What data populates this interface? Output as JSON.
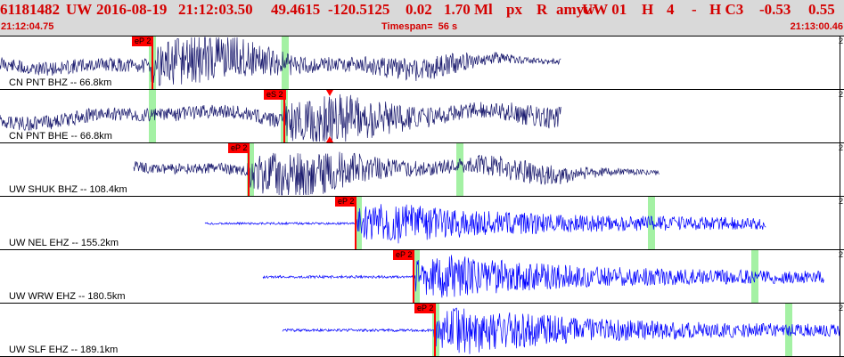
{
  "header": {
    "event_id": "61181482",
    "network": "UW",
    "date": "2016-08-19",
    "time": "21:12:03.50",
    "lat": "49.4615",
    "lon": "-120.5125",
    "depth": "0.02",
    "magnitude": "1.70 Ml",
    "type": "px",
    "review": "R",
    "author": "amyw",
    "net_code": "UW 01",
    "h_label": "H",
    "count": "4",
    "dash": "-",
    "quality": "H C3",
    "val1": "-0.53",
    "val2": "0.55",
    "start_time": "21:12:04.75",
    "timespan": "Timespan=  56 s",
    "end_time": "21:13:00.46"
  },
  "colors": {
    "header_text": "#d40000",
    "trace_broadband": "#1a1a6e",
    "trace_short_period": "#0000ff",
    "pick": "#ff0000",
    "window": "#9aef9a"
  },
  "panels": [
    {
      "station": "CN PNT BHZ -- 66.8km",
      "pick_label": "eP 2",
      "scale": "2",
      "trace_type": "broadband"
    },
    {
      "station": "CN PNT BHE -- 66.8km",
      "pick_label": "eS 2",
      "scale": "2",
      "trace_type": "broadband"
    },
    {
      "station": "UW SHUK BHZ -- 108.4km",
      "pick_label": "eP 2",
      "scale": "2",
      "trace_type": "broadband"
    },
    {
      "station": "UW NEL EHZ -- 155.2km",
      "pick_label": "eP 2",
      "scale": "2",
      "trace_type": "short_period"
    },
    {
      "station": "UW WRW EHZ -- 180.5km",
      "pick_label": "eP 2",
      "scale": "2",
      "trace_type": "short_period"
    },
    {
      "station": "UW SLF EHZ -- 189.1km",
      "pick_label": "eP 2",
      "scale": "2",
      "trace_type": "short_period"
    }
  ]
}
